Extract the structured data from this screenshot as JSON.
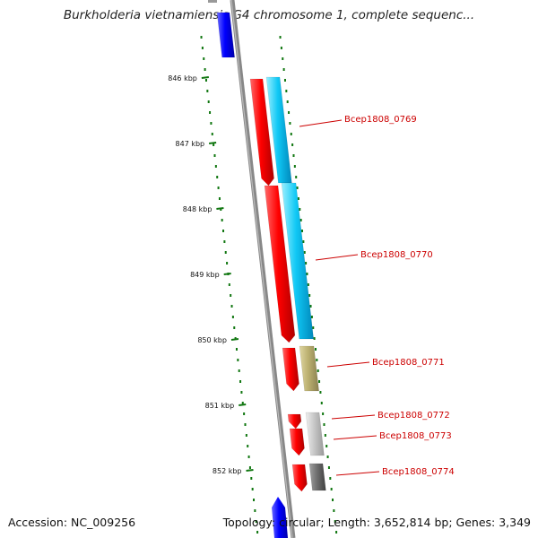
{
  "title": "Burkholderia vietnamiensis G4 chromosome 1, complete sequenc...",
  "scale_labels": [
    "846 kbp",
    "847 kbp",
    "848 kbp",
    "849 kbp",
    "850 kbp",
    "851 kbp",
    "852 kbp"
  ],
  "gene_labels": [
    "Bcep1808_0769",
    "Bcep1808_0770",
    "Bcep1808_0771",
    "Bcep1808_0772",
    "Bcep1808_0773",
    "Bcep1808_0774"
  ],
  "footer": {
    "accession": "Accession: NC_009256",
    "summary": "Topology: circular; Length: 3,652,814 bp; Genes: 3,349"
  },
  "colors": {
    "backbone": "#888888",
    "forward_strand": "#0000ff",
    "cds_red": "#ff0000",
    "cds_cyan": "#00ccff",
    "cds_olive": "#bbb070",
    "cds_light_gray": "#c8c8c8",
    "cds_dark_gray": "#707070",
    "gc_dots": "#006600",
    "label_text": "#cc0000"
  }
}
